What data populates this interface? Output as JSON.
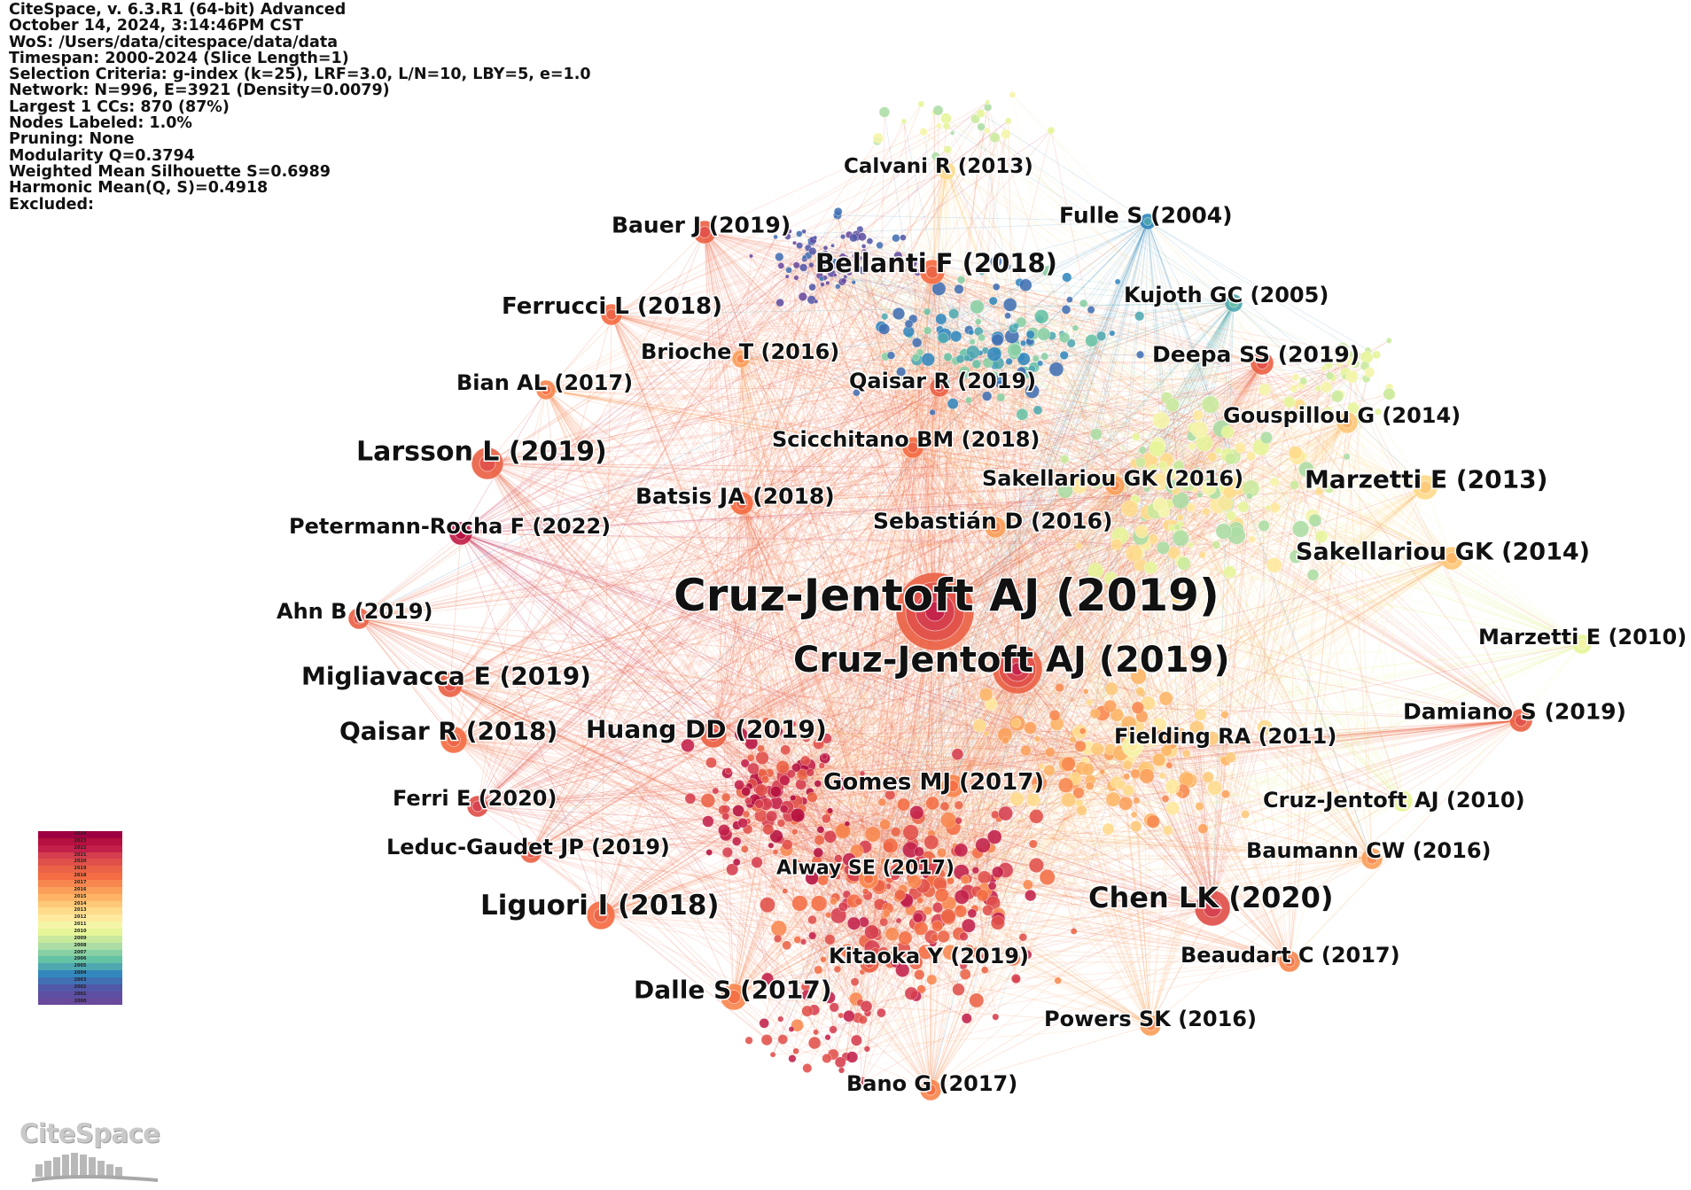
{
  "info": {
    "lines": [
      "CiteSpace, v. 6.3.R1 (64-bit) Advanced",
      "October 14, 2024, 3:14:46PM CST",
      "WoS: /Users/data/citespace/data/data",
      "Timespan: 2000-2024 (Slice Length=1)",
      "Selection Criteria: g-index (k=25), LRF=3.0, L/N=10, LBY=5, e=1.0",
      "Network: N=996, E=3921 (Density=0.0079)",
      "Largest 1 CCs: 870 (87%)",
      "Nodes Labeled: 1.0%",
      "Pruning: None",
      "Modularity Q=0.3794",
      "Weighted Mean Silhouette S=0.6989",
      "Harmonic Mean(Q, S)=0.4918",
      "Excluded:"
    ]
  },
  "legend": {
    "years": [
      "2024",
      "2023",
      "2022",
      "2021",
      "2020",
      "2019",
      "2018",
      "2017",
      "2016",
      "2015",
      "2014",
      "2013",
      "2012",
      "2011",
      "2010",
      "2009",
      "2008",
      "2007",
      "2006",
      "2005",
      "2004",
      "2003",
      "2002",
      "2001",
      "2000"
    ],
    "colors": [
      "#9e0142",
      "#b5103f",
      "#c2204a",
      "#d53e4f",
      "#e0504a",
      "#ea6346",
      "#f46d43",
      "#f7874f",
      "#fa9f5a",
      "#fdb565",
      "#fdc878",
      "#fedb8b",
      "#fee99d",
      "#f5f5a8",
      "#e6f598",
      "#c8e99c",
      "#abdda4",
      "#88cfa4",
      "#66c2a5",
      "#4fa8b0",
      "#3288bd",
      "#4170b3",
      "#5258a8",
      "#5e4fa2",
      "#6a4a9c"
    ]
  },
  "logo": {
    "text": "CiteSpace"
  },
  "nodes": [
    {
      "label": "Cruz-Jentoft AJ (2019)",
      "year": 2019,
      "size": 44
    },
    {
      "label": "Cruz-Jentoft AJ (2019)",
      "year": 2019,
      "size": 28
    },
    {
      "label": "Larsson L (2019)",
      "year": 2019,
      "size": 18
    },
    {
      "label": "Bellanti F (2018)",
      "year": 2018,
      "size": 14
    },
    {
      "label": "Calvani R (2013)",
      "year": 2013,
      "size": 10
    },
    {
      "label": "Fulle S (2004)",
      "year": 2004,
      "size": 9
    },
    {
      "label": "Bauer J (2019)",
      "year": 2019,
      "size": 13
    },
    {
      "label": "Kujoth GC (2005)",
      "year": 2005,
      "size": 10
    },
    {
      "label": "Ferrucci L (2018)",
      "year": 2018,
      "size": 12
    },
    {
      "label": "Brioche T (2016)",
      "year": 2016,
      "size": 10
    },
    {
      "label": "Deepa SS (2019)",
      "year": 2019,
      "size": 13
    },
    {
      "label": "Bian AL (2017)",
      "year": 2017,
      "size": 11
    },
    {
      "label": "Qaisar R (2019)",
      "year": 2019,
      "size": 11
    },
    {
      "label": "Gouspillou G (2014)",
      "year": 2014,
      "size": 12
    },
    {
      "label": "Scicchitano BM (2018)",
      "year": 2018,
      "size": 12
    },
    {
      "label": "Sakellariou GK (2016)",
      "year": 2016,
      "size": 11
    },
    {
      "label": "Marzetti E (2013)",
      "year": 2013,
      "size": 14
    },
    {
      "label": "Batsis JA (2018)",
      "year": 2018,
      "size": 13
    },
    {
      "label": "Sebastián D (2016)",
      "year": 2016,
      "size": 12
    },
    {
      "label": "Petermann-Rocha F (2022)",
      "year": 2022,
      "size": 13
    },
    {
      "label": "Sakellariou GK (2014)",
      "year": 2014,
      "size": 13
    },
    {
      "label": "Ahn B (2019)",
      "year": 2019,
      "size": 12
    },
    {
      "label": "Marzetti E (2010)",
      "year": 2010,
      "size": 11
    },
    {
      "label": "Migliavacca E (2019)",
      "year": 2019,
      "size": 14
    },
    {
      "label": "Damiano S (2019)",
      "year": 2019,
      "size": 13
    },
    {
      "label": "Qaisar R (2018)",
      "year": 2018,
      "size": 15
    },
    {
      "label": "Huang DD (2019)",
      "year": 2019,
      "size": 15
    },
    {
      "label": "Fielding RA (2011)",
      "year": 2011,
      "size": 12
    },
    {
      "label": "Gomes MJ (2017)",
      "year": 2017,
      "size": 13
    },
    {
      "label": "Cruz-Jentoft AJ (2010)",
      "year": 2010,
      "size": 12
    },
    {
      "label": "Ferri E (2020)",
      "year": 2020,
      "size": 12
    },
    {
      "label": "Leduc-Gaudet JP (2019)",
      "year": 2019,
      "size": 12
    },
    {
      "label": "Baumann CW (2016)",
      "year": 2016,
      "size": 12
    },
    {
      "label": "Alway SE (2017)",
      "year": 2017,
      "size": 11
    },
    {
      "label": "Chen LK (2020)",
      "year": 2020,
      "size": 20
    },
    {
      "label": "Liguori I (2018)",
      "year": 2018,
      "size": 16
    },
    {
      "label": "Kitaoka Y (2019)",
      "year": 2019,
      "size": 11
    },
    {
      "label": "Beaudart C (2017)",
      "year": 2017,
      "size": 12
    },
    {
      "label": "Dalle S (2017)",
      "year": 2017,
      "size": 15
    },
    {
      "label": "Powers SK (2016)",
      "year": 2016,
      "size": 12
    },
    {
      "label": "Bano G (2017)",
      "year": 2017,
      "size": 12
    }
  ]
}
